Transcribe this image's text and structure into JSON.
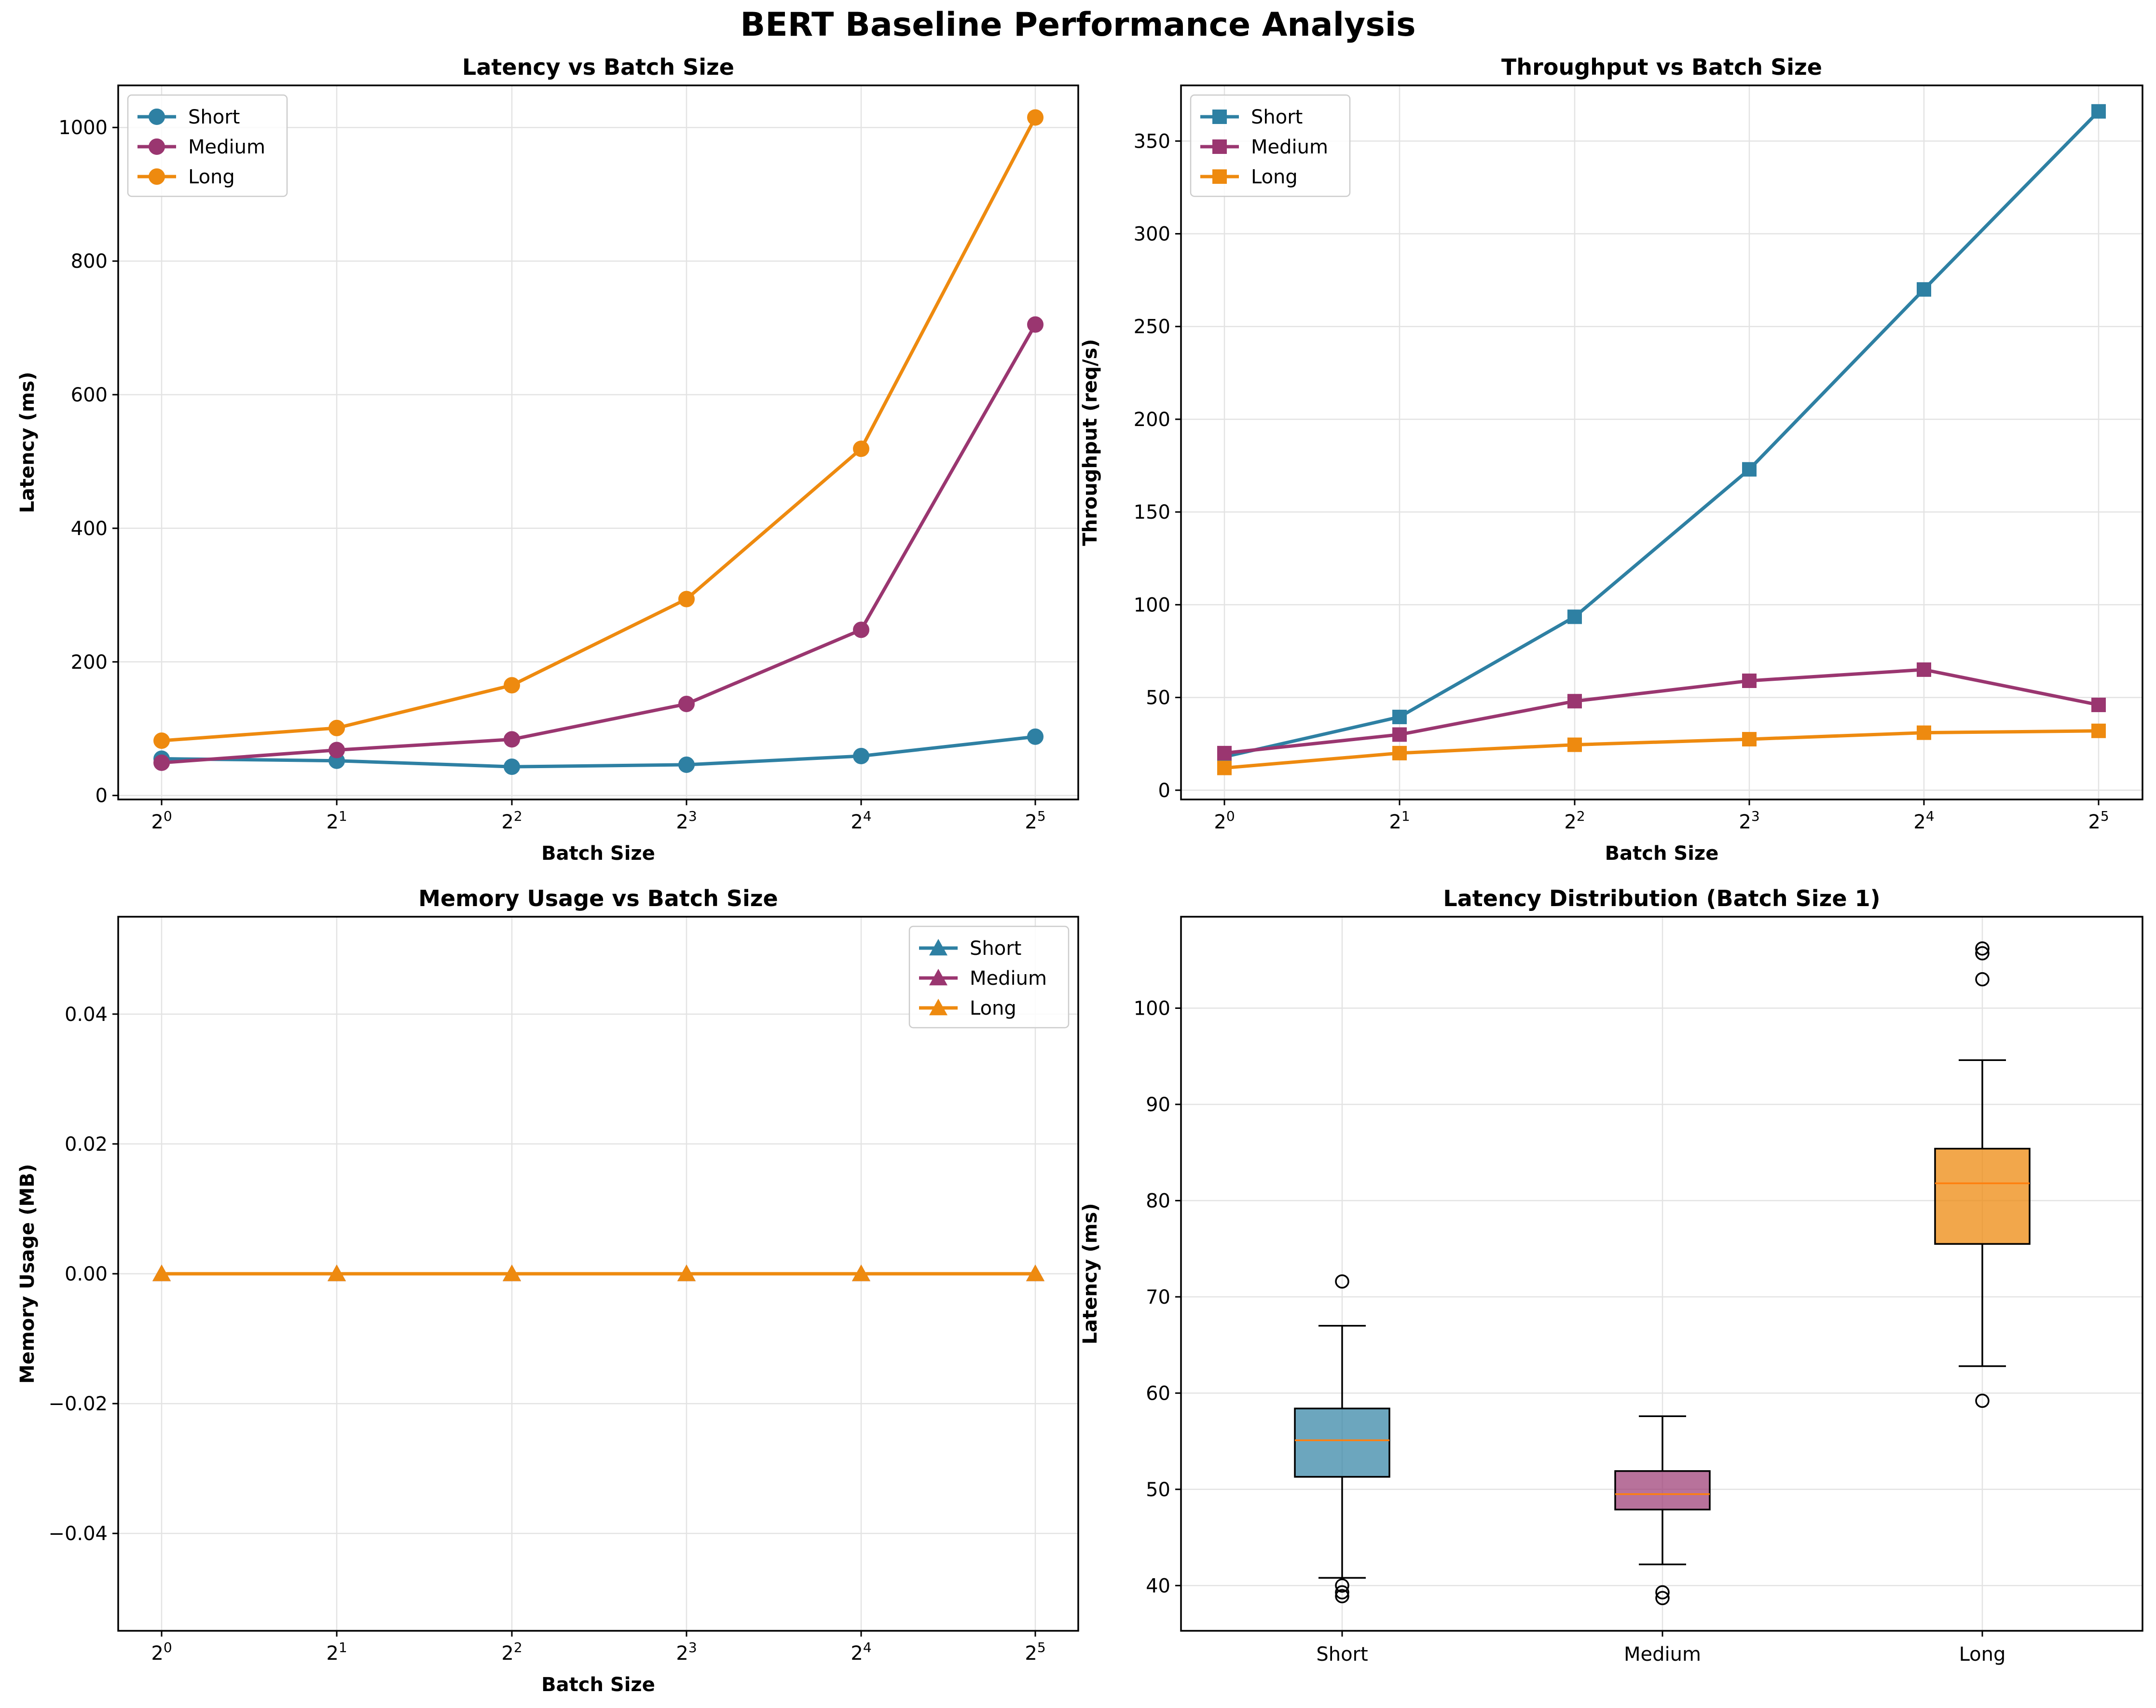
{
  "suptitle": "BERT Baseline Performance Analysis",
  "colors": {
    "short": "#2e80a3",
    "medium": "#9a3670",
    "long": "#ee8a0f",
    "median": "#ff7f0e"
  },
  "chart_data": [
    {
      "id": "latency",
      "type": "line",
      "title": "Latency vs Batch Size",
      "xlabel": "Batch Size",
      "ylabel": "Latency (ms)",
      "xscale": "log2",
      "x": [
        1,
        2,
        4,
        8,
        16,
        32
      ],
      "xtick_labels": [
        "0",
        "1",
        "2",
        "3",
        "4",
        "5"
      ],
      "ylim": [
        -6,
        1063
      ],
      "yticks": [
        0,
        200,
        400,
        600,
        800,
        1000
      ],
      "marker": "circle",
      "legend": "upper left",
      "grid": true,
      "series": [
        {
          "name": "Short",
          "values": [
            55,
            52,
            43,
            46,
            59,
            88
          ]
        },
        {
          "name": "Medium",
          "values": [
            49,
            68,
            84,
            137,
            248,
            705
          ]
        },
        {
          "name": "Long",
          "values": [
            82,
            101,
            165,
            294,
            519,
            1015
          ]
        }
      ]
    },
    {
      "id": "throughput",
      "type": "line",
      "title": "Throughput vs Batch Size",
      "xlabel": "Batch Size",
      "ylabel": "Throughput (req/s)",
      "xscale": "log2",
      "x": [
        1,
        2,
        4,
        8,
        16,
        32
      ],
      "xtick_labels": [
        "0",
        "1",
        "2",
        "3",
        "4",
        "5"
      ],
      "ylim": [
        -5,
        380
      ],
      "yticks": [
        0,
        50,
        100,
        150,
        200,
        250,
        300,
        350
      ],
      "marker": "square",
      "legend": "upper left",
      "grid": true,
      "series": [
        {
          "name": "Short",
          "values": [
            18,
            39.5,
            93.5,
            173,
            270,
            366
          ]
        },
        {
          "name": "Medium",
          "values": [
            20,
            30,
            48,
            59,
            65,
            46
          ]
        },
        {
          "name": "Long",
          "values": [
            12,
            20,
            24.5,
            27.5,
            31,
            32
          ]
        }
      ]
    },
    {
      "id": "memory",
      "type": "line",
      "title": "Memory Usage vs Batch Size",
      "xlabel": "Batch Size",
      "ylabel": "Memory Usage (MB)",
      "xscale": "log2",
      "x": [
        1,
        2,
        4,
        8,
        16,
        32
      ],
      "xtick_labels": [
        "0",
        "1",
        "2",
        "3",
        "4",
        "5"
      ],
      "ylim": [
        -0.055,
        0.055
      ],
      "yticks": [
        -0.04,
        -0.02,
        0.0,
        0.02,
        0.04
      ],
      "ytick_labels": [
        "−0.04",
        "−0.02",
        "0.00",
        "0.02",
        "0.04"
      ],
      "marker": "triangle",
      "legend": "upper right",
      "grid": true,
      "series": [
        {
          "name": "Short",
          "values": [
            0,
            0,
            0,
            0,
            0,
            0
          ]
        },
        {
          "name": "Medium",
          "values": [
            0,
            0,
            0,
            0,
            0,
            0
          ]
        },
        {
          "name": "Long",
          "values": [
            0,
            0,
            0,
            0,
            0,
            0
          ]
        }
      ]
    },
    {
      "id": "distribution",
      "type": "box",
      "title": "Latency Distribution (Batch Size 1)",
      "xlabel": "",
      "ylabel": "Latency (ms)",
      "categories": [
        "Short",
        "Medium",
        "Long"
      ],
      "ylim": [
        35.3,
        109.5
      ],
      "yticks": [
        40,
        50,
        60,
        70,
        80,
        90,
        100
      ],
      "grid": true,
      "boxes": [
        {
          "name": "Short",
          "whisker_low": 40.8,
          "q1": 51.3,
          "median": 55.1,
          "q3": 58.4,
          "whisker_high": 67.0,
          "outliers": [
            71.6,
            40.0,
            39.3,
            38.9
          ]
        },
        {
          "name": "Medium",
          "whisker_low": 42.2,
          "q1": 47.9,
          "median": 49.5,
          "q3": 51.9,
          "whisker_high": 57.6,
          "outliers": [
            39.3,
            38.7
          ]
        },
        {
          "name": "Long",
          "whisker_low": 62.8,
          "q1": 75.5,
          "median": 81.8,
          "q3": 85.4,
          "whisker_high": 94.6,
          "outliers": [
            106.2,
            105.7,
            103.0,
            59.2
          ]
        }
      ]
    }
  ]
}
